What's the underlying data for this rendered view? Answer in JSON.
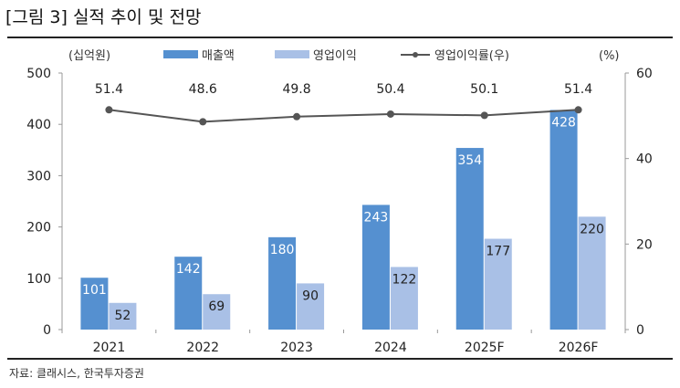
{
  "title": "[그림 3] 실적 추이 및 전망",
  "source": "자료: 클래시스, 한국투자증권",
  "chart_data": {
    "type": "bar",
    "categories": [
      "2021",
      "2022",
      "2023",
      "2024",
      "2025F",
      "2026F"
    ],
    "left_axis": {
      "unit_label": "(십억원)",
      "range": [
        0,
        500
      ],
      "ticks": [
        "0",
        "100",
        "200",
        "300",
        "400",
        "500"
      ]
    },
    "right_axis": {
      "unit_label": "(%)",
      "range": [
        0,
        60
      ],
      "ticks": [
        "0",
        "20",
        "40",
        "60"
      ]
    },
    "series": [
      {
        "name": "매출액",
        "type": "bar",
        "axis": "left",
        "color": "#5590d0",
        "values": [
          101,
          142,
          180,
          243,
          354,
          428
        ]
      },
      {
        "name": "영업이익",
        "type": "bar",
        "axis": "left",
        "color": "#a9c0e6",
        "values": [
          52,
          69,
          90,
          122,
          177,
          220
        ]
      },
      {
        "name": "영업이익률(우)",
        "type": "line",
        "axis": "right",
        "color": "#555555",
        "values": [
          51.4,
          48.6,
          49.8,
          50.4,
          50.1,
          51.4
        ]
      }
    ],
    "legend": "top"
  }
}
